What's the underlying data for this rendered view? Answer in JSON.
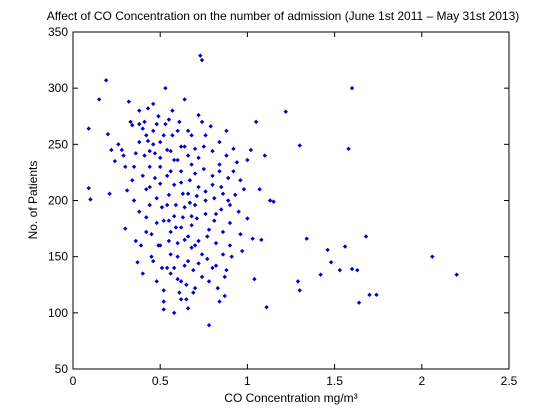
{
  "chart_data": {
    "type": "scatter",
    "title": "Affect of CO Concentration on the number of admission (June 1st 2011 – May 31st 2013)",
    "xlabel": "CO Concentration mg/m³",
    "ylabel": "No. of Patients",
    "xlim": [
      0,
      2.5
    ],
    "ylim": [
      50,
      350
    ],
    "x_ticks": [
      "0",
      "0.5",
      "1",
      "1.5",
      "2",
      "2.5"
    ],
    "y_ticks": [
      "50",
      "100",
      "150",
      "200",
      "250",
      "300",
      "350"
    ],
    "grid": false,
    "legend": "none",
    "marker": "dot",
    "color": "#0000CC",
    "points": [
      [
        0.09,
        211
      ],
      [
        0.1,
        201
      ],
      [
        0.09,
        264
      ],
      [
        0.15,
        290
      ],
      [
        0.19,
        307
      ],
      [
        0.2,
        259
      ],
      [
        0.21,
        206
      ],
      [
        0.22,
        245
      ],
      [
        0.24,
        235
      ],
      [
        0.26,
        250
      ],
      [
        0.28,
        245
      ],
      [
        0.29,
        240
      ],
      [
        0.3,
        175
      ],
      [
        0.31,
        209
      ],
      [
        0.32,
        288
      ],
      [
        0.33,
        270
      ],
      [
        0.34,
        267
      ],
      [
        0.35,
        200
      ],
      [
        0.35,
        230
      ],
      [
        0.36,
        164
      ],
      [
        0.37,
        145
      ],
      [
        0.38,
        280
      ],
      [
        0.38,
        252
      ],
      [
        0.38,
        190
      ],
      [
        0.39,
        160
      ],
      [
        0.4,
        264
      ],
      [
        0.4,
        135
      ],
      [
        0.41,
        270
      ],
      [
        0.41,
        240
      ],
      [
        0.42,
        210
      ],
      [
        0.42,
        185
      ],
      [
        0.43,
        282
      ],
      [
        0.43,
        253
      ],
      [
        0.44,
        230
      ],
      [
        0.44,
        196
      ],
      [
        0.45,
        170
      ],
      [
        0.45,
        150
      ],
      [
        0.46,
        286
      ],
      [
        0.46,
        262
      ],
      [
        0.47,
        242
      ],
      [
        0.47,
        220
      ],
      [
        0.48,
        180
      ],
      [
        0.48,
        128
      ],
      [
        0.49,
        160
      ],
      [
        0.49,
        275
      ],
      [
        0.5,
        252
      ],
      [
        0.5,
        230
      ],
      [
        0.5,
        215
      ],
      [
        0.51,
        194
      ],
      [
        0.51,
        140
      ],
      [
        0.52,
        120
      ],
      [
        0.52,
        110
      ],
      [
        0.52,
        103
      ],
      [
        0.53,
        300
      ],
      [
        0.53,
        268
      ],
      [
        0.54,
        245
      ],
      [
        0.54,
        222
      ],
      [
        0.55,
        205
      ],
      [
        0.55,
        182
      ],
      [
        0.55,
        164
      ],
      [
        0.56,
        152
      ],
      [
        0.56,
        135
      ],
      [
        0.57,
        280
      ],
      [
        0.57,
        258
      ],
      [
        0.58,
        236
      ],
      [
        0.58,
        214
      ],
      [
        0.59,
        196
      ],
      [
        0.59,
        176
      ],
      [
        0.6,
        150
      ],
      [
        0.6,
        130
      ],
      [
        0.61,
        118
      ],
      [
        0.61,
        270
      ],
      [
        0.62,
        248
      ],
      [
        0.62,
        226
      ],
      [
        0.63,
        206
      ],
      [
        0.63,
        185
      ],
      [
        0.64,
        165
      ],
      [
        0.64,
        142
      ],
      [
        0.65,
        125
      ],
      [
        0.65,
        112
      ],
      [
        0.66,
        262
      ],
      [
        0.66,
        240
      ],
      [
        0.67,
        218
      ],
      [
        0.67,
        198
      ],
      [
        0.68,
        178
      ],
      [
        0.68,
        158
      ],
      [
        0.69,
        138
      ],
      [
        0.69,
        118
      ],
      [
        0.7,
        246
      ],
      [
        0.7,
        224
      ],
      [
        0.71,
        204
      ],
      [
        0.71,
        184
      ],
      [
        0.72,
        164
      ],
      [
        0.72,
        144
      ],
      [
        0.73,
        329
      ],
      [
        0.74,
        325
      ],
      [
        0.74,
        270
      ],
      [
        0.75,
        248
      ],
      [
        0.75,
        228
      ],
      [
        0.76,
        208
      ],
      [
        0.76,
        188
      ],
      [
        0.77,
        168
      ],
      [
        0.77,
        148
      ],
      [
        0.78,
        128
      ],
      [
        0.78,
        89
      ],
      [
        0.79,
        266
      ],
      [
        0.8,
        244
      ],
      [
        0.8,
        222
      ],
      [
        0.81,
        202
      ],
      [
        0.81,
        182
      ],
      [
        0.82,
        162
      ],
      [
        0.82,
        142
      ],
      [
        0.83,
        122
      ],
      [
        0.84,
        252
      ],
      [
        0.84,
        232
      ],
      [
        0.85,
        212
      ],
      [
        0.85,
        192
      ],
      [
        0.86,
        172
      ],
      [
        0.86,
        152
      ],
      [
        0.87,
        132
      ],
      [
        0.87,
        115
      ],
      [
        0.88,
        262
      ],
      [
        0.88,
        240
      ],
      [
        0.89,
        220
      ],
      [
        0.89,
        200
      ],
      [
        0.9,
        180
      ],
      [
        0.9,
        160
      ],
      [
        0.91,
        150
      ],
      [
        0.92,
        226
      ],
      [
        0.93,
        205
      ],
      [
        0.95,
        190
      ],
      [
        0.96,
        170
      ],
      [
        0.97,
        155
      ],
      [
        0.98,
        210
      ],
      [
        1.0,
        184
      ],
      [
        1.02,
        245
      ],
      [
        1.03,
        166
      ],
      [
        1.04,
        130
      ],
      [
        1.05,
        270
      ],
      [
        1.07,
        210
      ],
      [
        1.08,
        165
      ],
      [
        1.1,
        240
      ],
      [
        1.11,
        105
      ],
      [
        1.13,
        200
      ],
      [
        1.15,
        199
      ],
      [
        1.22,
        279
      ],
      [
        1.29,
        128
      ],
      [
        1.3,
        249
      ],
      [
        1.3,
        120
      ],
      [
        1.34,
        166
      ],
      [
        1.42,
        134
      ],
      [
        1.46,
        156
      ],
      [
        1.48,
        145
      ],
      [
        1.53,
        138
      ],
      [
        1.56,
        159
      ],
      [
        1.58,
        246
      ],
      [
        1.6,
        300
      ],
      [
        1.6,
        139
      ],
      [
        1.63,
        138
      ],
      [
        1.64,
        109
      ],
      [
        1.68,
        168
      ],
      [
        1.7,
        116
      ],
      [
        1.74,
        116
      ],
      [
        2.06,
        150
      ],
      [
        2.2,
        134
      ],
      [
        0.46,
        250
      ],
      [
        0.55,
        272
      ],
      [
        0.6,
        262
      ],
      [
        0.64,
        290
      ],
      [
        0.68,
        232
      ],
      [
        0.72,
        238
      ],
      [
        0.5,
        238
      ],
      [
        0.56,
        226
      ],
      [
        0.62,
        216
      ],
      [
        0.66,
        206
      ],
      [
        0.7,
        196
      ],
      [
        0.54,
        196
      ],
      [
        0.58,
        186
      ],
      [
        0.62,
        176
      ],
      [
        0.66,
        168
      ],
      [
        0.44,
        212
      ],
      [
        0.48,
        202
      ],
      [
        0.52,
        182
      ],
      [
        0.56,
        172
      ],
      [
        0.6,
        162
      ],
      [
        0.4,
        222
      ],
      [
        0.36,
        242
      ],
      [
        0.34,
        218
      ],
      [
        0.3,
        230
      ],
      [
        0.58,
        140
      ],
      [
        0.62,
        128
      ],
      [
        0.66,
        146
      ],
      [
        0.7,
        160
      ],
      [
        0.74,
        152
      ],
      [
        0.78,
        174
      ],
      [
        0.82,
        188
      ],
      [
        0.86,
        206
      ],
      [
        0.9,
        196
      ],
      [
        0.92,
        246
      ],
      [
        0.94,
        234
      ],
      [
        0.76,
        258
      ],
      [
        0.72,
        276
      ],
      [
        0.68,
        258
      ],
      [
        0.64,
        248
      ],
      [
        0.6,
        236
      ],
      [
        0.56,
        244
      ],
      [
        0.52,
        258
      ],
      [
        0.48,
        268
      ],
      [
        0.44,
        244
      ],
      [
        0.42,
        258
      ],
      [
        0.38,
        268
      ],
      [
        0.58,
        100
      ],
      [
        0.62,
        112
      ],
      [
        0.66,
        104
      ],
      [
        0.7,
        122
      ],
      [
        0.74,
        132
      ],
      [
        0.8,
        140
      ],
      [
        0.84,
        110
      ],
      [
        0.88,
        138
      ],
      [
        0.96,
        218
      ],
      [
        1.0,
        236
      ],
      [
        0.5,
        160
      ],
      [
        0.46,
        146
      ],
      [
        0.42,
        172
      ],
      [
        0.54,
        140
      ],
      [
        0.64,
        194
      ],
      [
        0.68,
        186
      ],
      [
        0.72,
        212
      ],
      [
        0.76,
        200
      ],
      [
        0.8,
        214
      ],
      [
        0.84,
        226
      ]
    ]
  }
}
